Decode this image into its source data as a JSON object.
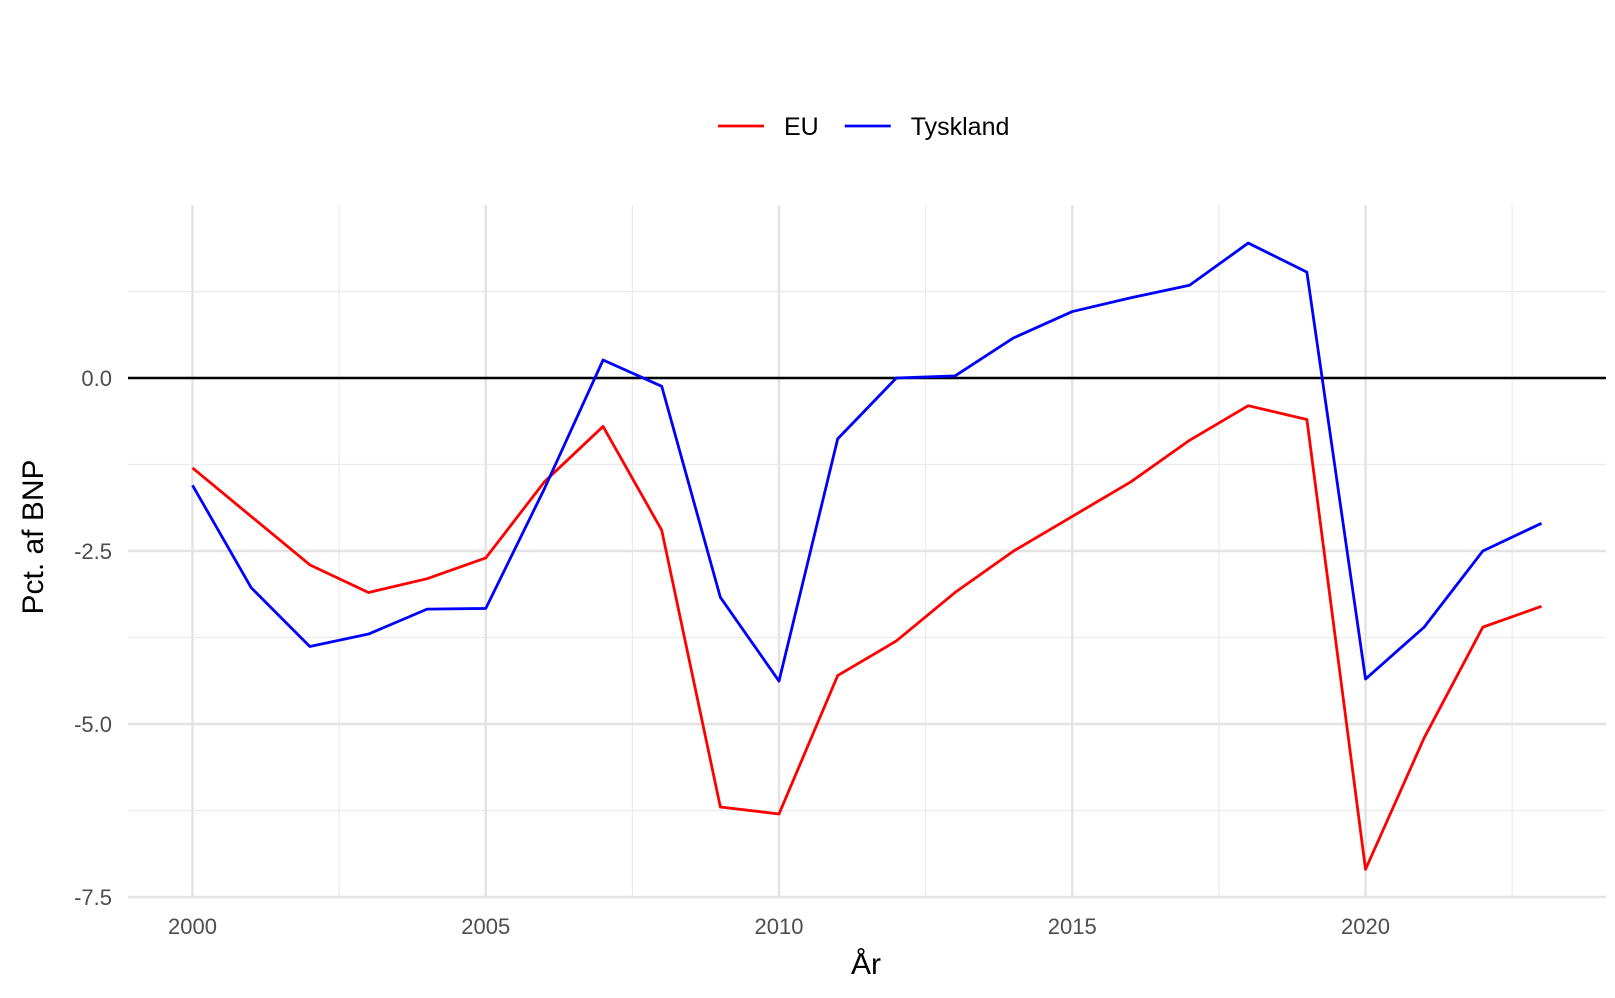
{
  "chart_data": {
    "type": "line",
    "xlabel": "År",
    "ylabel": "Pct. af BNP",
    "xlim": [
      1998.9,
      2024.1
    ],
    "ylim": [
      -7.5,
      2.5
    ],
    "x_ticks": [
      2000,
      2005,
      2010,
      2015,
      2020
    ],
    "x_tick_labels": [
      "2000",
      "2005",
      "2010",
      "2015",
      "2020"
    ],
    "y_ticks": [
      -7.5,
      -5.0,
      -2.5,
      0.0
    ],
    "y_tick_labels": [
      "-7.5",
      "-5.0",
      "-2.5",
      "0.0"
    ],
    "y_minor_gridlines": [
      -6.25,
      -3.75,
      -1.25,
      1.25
    ],
    "x_minor_gridlines": [
      2002.5,
      2007.5,
      2012.5,
      2017.5,
      2022.5
    ],
    "grid": true,
    "reference_line_y": 0,
    "reference_line_color": "#000000",
    "legend_position": "top",
    "x": [
      2000,
      2001,
      2002,
      2003,
      2004,
      2005,
      2006,
      2007,
      2008,
      2009,
      2010,
      2011,
      2012,
      2013,
      2014,
      2015,
      2016,
      2017,
      2018,
      2019,
      2020,
      2021,
      2022,
      2023
    ],
    "series": [
      {
        "name": "EU",
        "color": "#ff0000",
        "values": [
          -1.3,
          -2.0,
          -2.7,
          -3.1,
          -2.9,
          -2.6,
          -1.5,
          -0.7,
          -2.2,
          -6.2,
          -6.3,
          -4.3,
          -3.8,
          -3.1,
          -2.5,
          -2.0,
          -1.5,
          -0.9,
          -0.4,
          -0.6,
          -7.1,
          -5.2,
          -3.6,
          -3.3
        ]
      },
      {
        "name": "Tyskland",
        "color": "#0000ff",
        "values": [
          -1.55,
          -3.03,
          -3.88,
          -3.7,
          -3.34,
          -3.33,
          -1.6,
          0.26,
          -0.12,
          -3.17,
          -4.38,
          -0.88,
          0.0,
          0.03,
          0.58,
          0.96,
          1.16,
          1.34,
          1.95,
          1.53,
          -4.35,
          -3.6,
          -2.5,
          -2.1
        ]
      }
    ]
  }
}
